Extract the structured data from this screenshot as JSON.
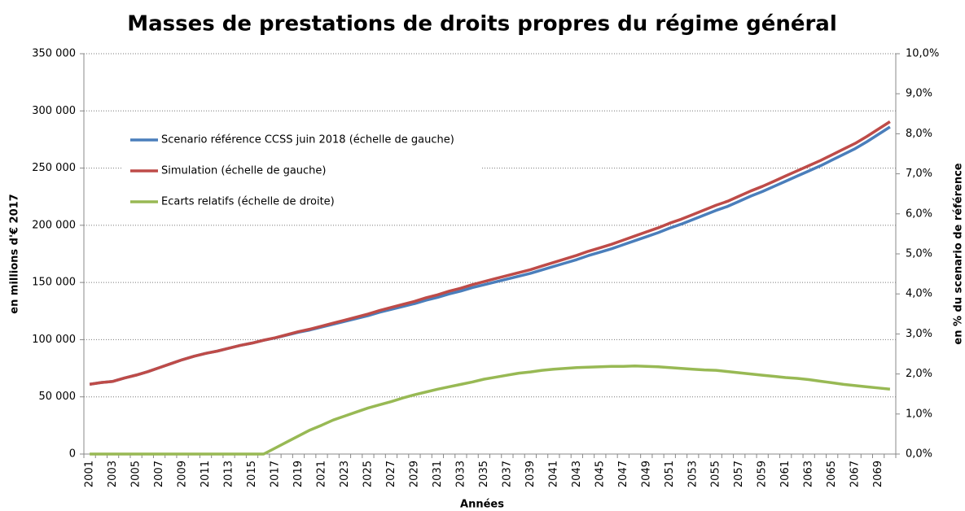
{
  "chart_data": {
    "type": "line",
    "title": "Masses de prestations de droits propres du régime général",
    "x_label": "Années",
    "y_label": "en millions d'€ 2017",
    "y2_label": "en % du scenario de référence",
    "categories": [
      "2001",
      null,
      "2003",
      null,
      "2005",
      null,
      "2007",
      null,
      "2009",
      null,
      "2011",
      null,
      "2013",
      null,
      "2015",
      null,
      "2017",
      null,
      "2019",
      null,
      "2021",
      null,
      "2023",
      null,
      "2025",
      null,
      "2027",
      null,
      "2029",
      null,
      "2031",
      null,
      "2033",
      null,
      "2035",
      null,
      "2037",
      null,
      "2039",
      null,
      "2041",
      null,
      "2043",
      null,
      "2045",
      null,
      "2047",
      null,
      "2049",
      null,
      "2051",
      null,
      "2053",
      null,
      "2055",
      null,
      "2057",
      null,
      "2059",
      null,
      "2061",
      null,
      "2063",
      null,
      "2065",
      null,
      "2067",
      null,
      "2069",
      null
    ],
    "series": [
      {
        "name": "Scenario référence CCSS juin 2018 (échelle de gauche)",
        "color": "#4a7ebb",
        "axis": "y",
        "values": [
          61000,
          62500,
          63500,
          66500,
          69000,
          72000,
          75500,
          79000,
          82500,
          85500,
          88000,
          90000,
          92500,
          95000,
          97000,
          99500,
          101500,
          104000,
          106500,
          108500,
          111000,
          113500,
          116000,
          118500,
          121000,
          124000,
          126500,
          129000,
          131500,
          134500,
          137000,
          140000,
          142500,
          145500,
          148000,
          150500,
          153000,
          155500,
          158000,
          161000,
          164000,
          167000,
          170000,
          173500,
          176500,
          179500,
          183000,
          186500,
          190000,
          193500,
          197500,
          201000,
          205000,
          209000,
          213000,
          216500,
          221000,
          225500,
          229500,
          234000,
          238500,
          243000,
          247500,
          252000,
          257000,
          262000,
          267000,
          273000,
          279500,
          286000
        ]
      },
      {
        "name": "Simulation (échelle de gauche)",
        "color": "#be4b48",
        "axis": "y",
        "values": [
          61000,
          62500,
          63500,
          66500,
          69000,
          72000,
          75500,
          79000,
          82500,
          85500,
          88000,
          90000,
          92500,
          95000,
          97000,
          99500,
          101700,
          104300,
          107000,
          109200,
          111800,
          114500,
          117100,
          119700,
          122400,
          125500,
          128200,
          130800,
          133400,
          136600,
          139200,
          142400,
          145000,
          148100,
          150800,
          153400,
          156000,
          158600,
          161200,
          164400,
          167500,
          170600,
          173700,
          177300,
          180300,
          183400,
          187000,
          190600,
          194200,
          197700,
          201800,
          205300,
          209300,
          213400,
          217500,
          221000,
          225500,
          230000,
          234000,
          238500,
          243100,
          247600,
          252100,
          256600,
          261600,
          266600,
          271600,
          277600,
          284100,
          290600
        ]
      },
      {
        "name": "Ecarts relatifs (échelle de droite)",
        "color": "#98b954",
        "axis": "y2",
        "values": [
          0,
          0,
          0,
          0,
          0,
          0,
          0,
          0,
          0,
          0,
          0,
          0,
          0,
          0,
          0,
          0,
          0.15,
          0.3,
          0.45,
          0.6,
          0.72,
          0.85,
          0.95,
          1.05,
          1.15,
          1.23,
          1.31,
          1.4,
          1.48,
          1.55,
          1.62,
          1.68,
          1.74,
          1.8,
          1.87,
          1.92,
          1.97,
          2.02,
          2.05,
          2.09,
          2.12,
          2.14,
          2.16,
          2.17,
          2.18,
          2.19,
          2.19,
          2.2,
          2.19,
          2.18,
          2.16,
          2.14,
          2.12,
          2.1,
          2.09,
          2.06,
          2.03,
          2.0,
          1.97,
          1.94,
          1.91,
          1.89,
          1.86,
          1.82,
          1.78,
          1.74,
          1.71,
          1.68,
          1.65,
          1.62
        ]
      }
    ],
    "ylim": [
      0,
      350000
    ],
    "yticks": [
      0,
      {
        "value": 50000,
        "label": "50 000"
      },
      {
        "value": 100000,
        "label": "100 000"
      },
      {
        "value": 150000,
        "label": "150 000"
      },
      {
        "value": 200000,
        "label": "200 000"
      },
      {
        "value": 250000,
        "label": "250 000"
      },
      {
        "value": 300000,
        "label": "300 000"
      },
      {
        "value": 350000,
        "label": "350 000"
      }
    ],
    "y2lim": [
      0,
      10
    ],
    "y2ticks": [
      {
        "value": 0,
        "label": "0,0%"
      },
      {
        "value": 1,
        "label": "1,0%"
      },
      {
        "value": 2,
        "label": "2,0%"
      },
      {
        "value": 3,
        "label": "3,0%"
      },
      {
        "value": 4,
        "label": "4,0%"
      },
      {
        "value": 5,
        "label": "5,0%"
      },
      {
        "value": 6,
        "label": "6,0%"
      },
      {
        "value": 7,
        "label": "7,0%"
      },
      {
        "value": 8,
        "label": "8,0%"
      },
      {
        "value": 9,
        "label": "9,0%"
      },
      {
        "value": 10,
        "label": "10,0%"
      }
    ],
    "grid": true
  }
}
